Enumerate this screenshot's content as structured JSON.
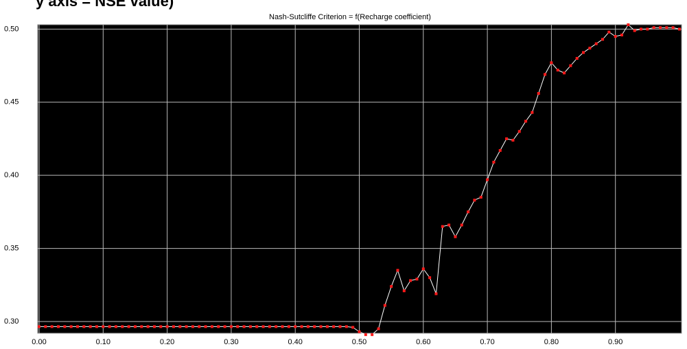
{
  "chart_data": {
    "type": "line",
    "annotation": "y axis = NSE value)",
    "title": "Nash-Sutcliffe Criterion = f(Recharge coefficient)",
    "x": [
      0.0,
      0.01,
      0.02,
      0.03,
      0.04,
      0.05,
      0.06,
      0.07,
      0.08,
      0.09,
      0.1,
      0.11,
      0.12,
      0.13,
      0.14,
      0.15,
      0.16,
      0.17,
      0.18,
      0.19,
      0.2,
      0.21,
      0.22,
      0.23,
      0.24,
      0.25,
      0.26,
      0.27,
      0.28,
      0.29,
      0.3,
      0.31,
      0.32,
      0.33,
      0.34,
      0.35,
      0.36,
      0.37,
      0.38,
      0.39,
      0.4,
      0.41,
      0.42,
      0.43,
      0.44,
      0.45,
      0.46,
      0.47,
      0.48,
      0.49,
      0.5,
      0.51,
      0.52,
      0.53,
      0.54,
      0.55,
      0.56,
      0.57,
      0.58,
      0.59,
      0.6,
      0.61,
      0.62,
      0.63,
      0.64,
      0.65,
      0.66,
      0.67,
      0.68,
      0.69,
      0.7,
      0.71,
      0.72,
      0.73,
      0.74,
      0.75,
      0.76,
      0.77,
      0.78,
      0.79,
      0.8,
      0.81,
      0.82,
      0.83,
      0.84,
      0.85,
      0.86,
      0.87,
      0.88,
      0.89,
      0.9,
      0.91,
      0.92,
      0.93,
      0.94,
      0.95,
      0.96,
      0.97,
      0.98,
      0.99,
      1.0
    ],
    "values": [
      0.2965,
      0.2965,
      0.2965,
      0.2965,
      0.2965,
      0.2965,
      0.2965,
      0.2965,
      0.2965,
      0.2965,
      0.2965,
      0.2965,
      0.2965,
      0.2965,
      0.2965,
      0.2965,
      0.2965,
      0.2965,
      0.2965,
      0.2965,
      0.2965,
      0.2965,
      0.2965,
      0.2965,
      0.2965,
      0.2965,
      0.2965,
      0.2965,
      0.2965,
      0.2965,
      0.2965,
      0.2965,
      0.2965,
      0.2965,
      0.2965,
      0.2965,
      0.2965,
      0.2965,
      0.2965,
      0.2965,
      0.2965,
      0.2965,
      0.2965,
      0.2965,
      0.2965,
      0.2965,
      0.2965,
      0.2965,
      0.2965,
      0.296,
      0.293,
      0.291,
      0.291,
      0.295,
      0.311,
      0.324,
      0.335,
      0.321,
      0.328,
      0.329,
      0.336,
      0.33,
      0.319,
      0.365,
      0.366,
      0.358,
      0.366,
      0.375,
      0.383,
      0.385,
      0.397,
      0.409,
      0.417,
      0.425,
      0.424,
      0.43,
      0.437,
      0.443,
      0.456,
      0.469,
      0.477,
      0.472,
      0.47,
      0.475,
      0.48,
      0.484,
      0.487,
      0.49,
      0.493,
      0.498,
      0.495,
      0.496,
      0.503,
      0.499,
      0.5,
      0.5,
      0.501,
      0.501,
      0.501,
      0.501,
      0.5
    ],
    "color": "#ff1a1a",
    "line_color": "#ffffff",
    "xlim": [
      0,
      1.0
    ],
    "ylim": [
      0.292,
      0.503
    ],
    "xticks": [
      {
        "value": 0,
        "label": "0.00"
      },
      {
        "value": 0.1,
        "label": "0.10"
      },
      {
        "value": 0.2,
        "label": "0.20"
      },
      {
        "value": 0.3,
        "label": "0.30"
      },
      {
        "value": 0.4,
        "label": "0.40"
      },
      {
        "value": 0.5,
        "label": "0.50"
      },
      {
        "value": 0.6,
        "label": "0.60"
      },
      {
        "value": 0.7,
        "label": "0.70"
      },
      {
        "value": 0.8,
        "label": "0.80"
      },
      {
        "value": 0.9,
        "label": "0.90"
      }
    ],
    "yticks": [
      {
        "value": 0.3,
        "label": "0.30"
      },
      0.35,
      {
        "value": 0.4,
        "label": "0.40"
      },
      0.45,
      {
        "value": 0.5,
        "label": "0.50"
      }
    ],
    "grid": true
  }
}
